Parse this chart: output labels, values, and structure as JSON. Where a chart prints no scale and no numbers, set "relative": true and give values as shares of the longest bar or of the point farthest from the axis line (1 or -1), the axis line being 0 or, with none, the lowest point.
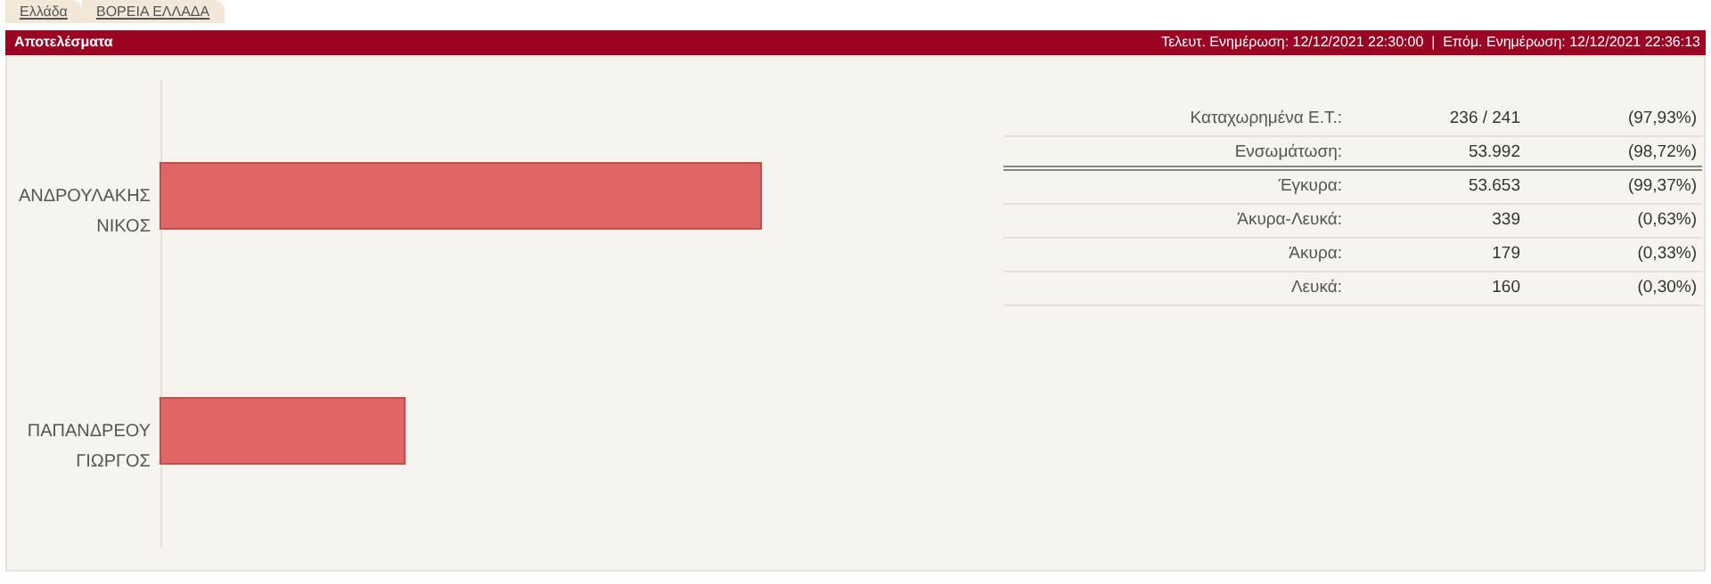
{
  "chart_data": {
    "type": "bar",
    "orientation": "horizontal",
    "relative": true,
    "title": "Αποτελέσματα",
    "subtitle": "Τελευτ. Ενημέρωση: 12/12/2021 22:30:00  |  Επόμ. Ενημέρωση: 12/12/2021 22:36:13",
    "categories": [
      "ΑΝΔΡΟΥΛΑΚΗΣ ΝΙΚΟΣ",
      "ΠΑΠΑΝΔΡΕΟΥ ΓΙΩΡΓΟΣ"
    ],
    "values": [
      1,
      0.407
    ],
    "color": "#e06666",
    "annotations": [
      "Ελλάδα",
      "ΒΟΡΕΙΑ ΕΛΛΑΔΑ",
      "Καταχωρημένα Ε.Τ.:",
      "236 / 241",
      "(97,93%)",
      "Ενσωμάτωση:",
      "53.992",
      "(98,72%)",
      "Έγκυρα:",
      "53.653",
      "(99,37%)",
      "Άκυρα-Λευκά:",
      "339",
      "(0,63%)",
      "Άκυρα:",
      "179",
      "(0,33%)",
      "Λευκά:",
      "160",
      "(0,30%)"
    ]
  }
}
